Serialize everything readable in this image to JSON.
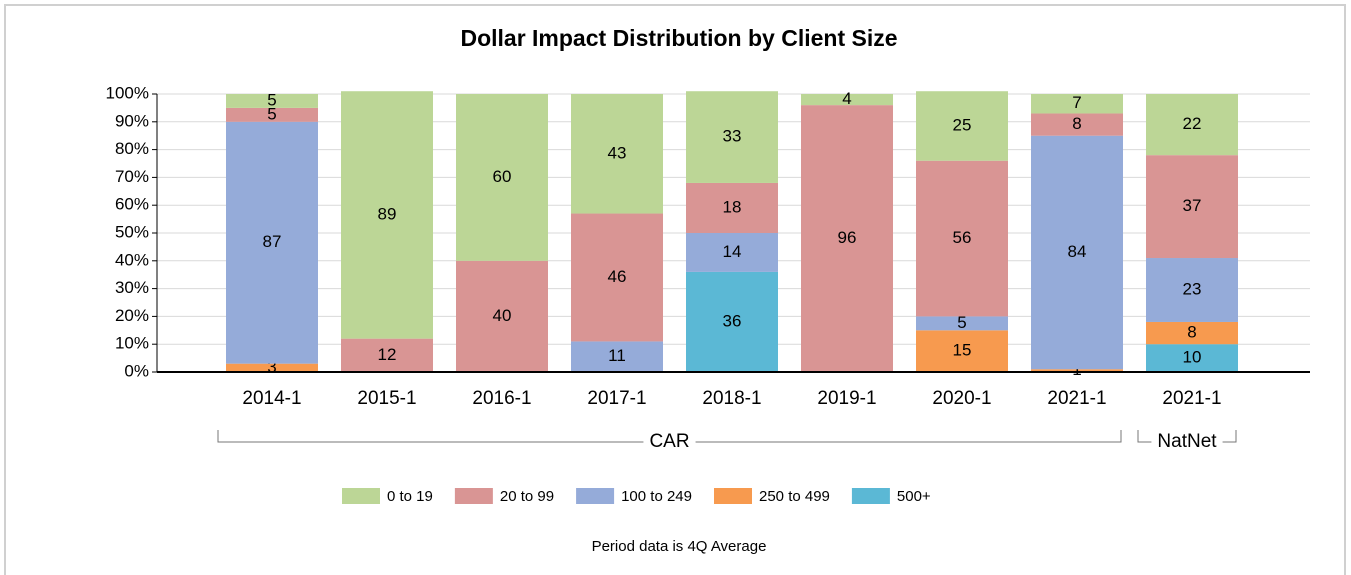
{
  "chart_data": {
    "type": "stacked_bar_100",
    "title": "Dollar Impact Distribution by Client Size",
    "note": "Period data is 4Q Average",
    "categories": [
      "2014-1",
      "2015-1",
      "2016-1",
      "2017-1",
      "2018-1",
      "2019-1",
      "2020-1",
      "2021-1",
      "2021-1"
    ],
    "groups": [
      {
        "name": "CAR",
        "size": 8
      },
      {
        "name": "NatNet",
        "size": 1
      }
    ],
    "series": [
      {
        "name": "500+",
        "color": "#5bb8d5",
        "values": [
          0,
          0,
          0,
          0,
          36,
          0,
          0,
          0,
          10
        ]
      },
      {
        "name": "250 to 499",
        "color": "#f79a4f",
        "values": [
          3,
          0,
          0,
          0,
          0,
          0,
          15,
          1,
          8
        ]
      },
      {
        "name": "100 to 249",
        "color": "#95abd9",
        "values": [
          87,
          0,
          0,
          11,
          14,
          0,
          5,
          84,
          23
        ]
      },
      {
        "name": "20 to 99",
        "color": "#d99594",
        "values": [
          5,
          12,
          40,
          46,
          18,
          96,
          56,
          8,
          37
        ]
      },
      {
        "name": "0 to 19",
        "color": "#bcd696",
        "values": [
          5,
          89,
          60,
          43,
          33,
          4,
          25,
          7,
          22
        ]
      }
    ],
    "legend_order": [
      4,
      3,
      2,
      1,
      0
    ],
    "ylim": [
      0,
      100
    ],
    "yticks": [
      {
        "value": 0,
        "label": "0%"
      },
      {
        "value": 10,
        "label": "10%"
      },
      {
        "value": 20,
        "label": "20%"
      },
      {
        "value": 30,
        "label": "30%"
      },
      {
        "value": 40,
        "label": "40%"
      },
      {
        "value": 50,
        "label": "50%"
      },
      {
        "value": 60,
        "label": "60%"
      },
      {
        "value": 70,
        "label": "70%"
      },
      {
        "value": 80,
        "label": "80%"
      },
      {
        "value": 90,
        "label": "90%"
      },
      {
        "value": 100,
        "label": "100%"
      }
    ],
    "grid": true
  }
}
